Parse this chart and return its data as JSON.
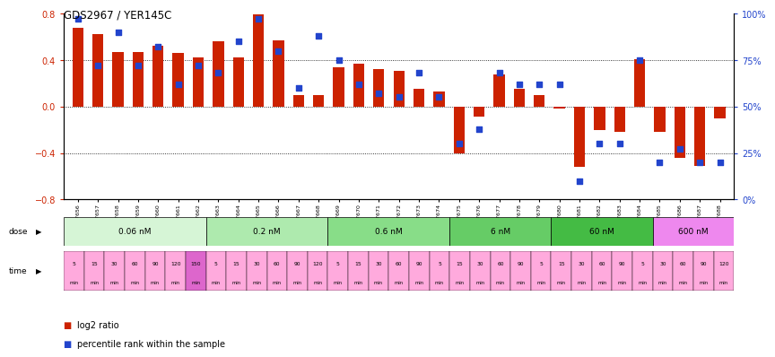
{
  "title": "GDS2967 / YER145C",
  "samples": [
    "GSM227656",
    "GSM227657",
    "GSM227658",
    "GSM227659",
    "GSM227660",
    "GSM227661",
    "GSM227662",
    "GSM227663",
    "GSM227664",
    "GSM227665",
    "GSM227666",
    "GSM227667",
    "GSM227668",
    "GSM227669",
    "GSM227670",
    "GSM227671",
    "GSM227672",
    "GSM227673",
    "GSM227674",
    "GSM227675",
    "GSM227676",
    "GSM227677",
    "GSM227678",
    "GSM227679",
    "GSM227680",
    "GSM227681",
    "GSM227682",
    "GSM227683",
    "GSM227684",
    "GSM227685",
    "GSM227686",
    "GSM227687",
    "GSM227688"
  ],
  "log2_ratio": [
    0.68,
    0.62,
    0.47,
    0.47,
    0.52,
    0.46,
    0.42,
    0.56,
    0.42,
    0.79,
    0.57,
    0.1,
    0.1,
    0.34,
    0.37,
    0.32,
    0.31,
    0.15,
    0.13,
    -0.4,
    -0.09,
    0.28,
    0.15,
    0.1,
    -0.02,
    -0.52,
    -0.2,
    -0.22,
    0.41,
    -0.22,
    -0.44,
    -0.51,
    -0.1
  ],
  "percentile": [
    97,
    72,
    90,
    72,
    82,
    62,
    72,
    68,
    85,
    97,
    80,
    60,
    88,
    75,
    62,
    57,
    55,
    68,
    55,
    30,
    38,
    68,
    62,
    62,
    62,
    10,
    30,
    30,
    75,
    20,
    27,
    20,
    20
  ],
  "doses": [
    {
      "label": "0.06 nM",
      "start": 0,
      "end": 7,
      "color": "#d6f5d6"
    },
    {
      "label": "0.2 nM",
      "start": 7,
      "end": 13,
      "color": "#aeeaae"
    },
    {
      "label": "0.6 nM",
      "start": 13,
      "end": 19,
      "color": "#88dd88"
    },
    {
      "label": "6 nM",
      "start": 19,
      "end": 24,
      "color": "#66cc66"
    },
    {
      "label": "60 nM",
      "start": 24,
      "end": 29,
      "color": "#44bb44"
    },
    {
      "label": "600 nM",
      "start": 29,
      "end": 33,
      "color": "#ee88ee"
    }
  ],
  "time_labels": [
    "5",
    "15",
    "30",
    "60",
    "90",
    "120",
    "150",
    "5",
    "15",
    "30",
    "60",
    "90",
    "120",
    "5",
    "15",
    "30",
    "60",
    "90",
    "5",
    "15",
    "30",
    "60",
    "90",
    "5",
    "15",
    "30",
    "60",
    "90",
    "5",
    "30",
    "60",
    "90",
    "120"
  ],
  "time_colors": [
    "#ffaadd",
    "#ffaadd",
    "#ffaadd",
    "#ffaadd",
    "#ffaadd",
    "#ffaadd",
    "#dd66cc",
    "#ffaadd",
    "#ffaadd",
    "#ffaadd",
    "#ffaadd",
    "#ffaadd",
    "#ffaadd",
    "#ffaadd",
    "#ffaadd",
    "#ffaadd",
    "#ffaadd",
    "#ffaadd",
    "#ffaadd",
    "#ffaadd",
    "#ffaadd",
    "#ffaadd",
    "#ffaadd",
    "#ffaadd",
    "#ffaadd",
    "#ffaadd",
    "#ffaadd",
    "#ffaadd",
    "#ffaadd",
    "#ffaadd",
    "#ffaadd",
    "#ffaadd",
    "#ffaadd"
  ],
  "bar_color": "#cc2200",
  "dot_color": "#2244cc",
  "ylim": [
    -0.8,
    0.8
  ],
  "y2lim": [
    0,
    100
  ],
  "yticks": [
    -0.8,
    -0.4,
    0.0,
    0.4,
    0.8
  ],
  "y2ticks": [
    0,
    25,
    50,
    75,
    100
  ],
  "hlines": [
    0.4,
    0.0,
    -0.4
  ]
}
